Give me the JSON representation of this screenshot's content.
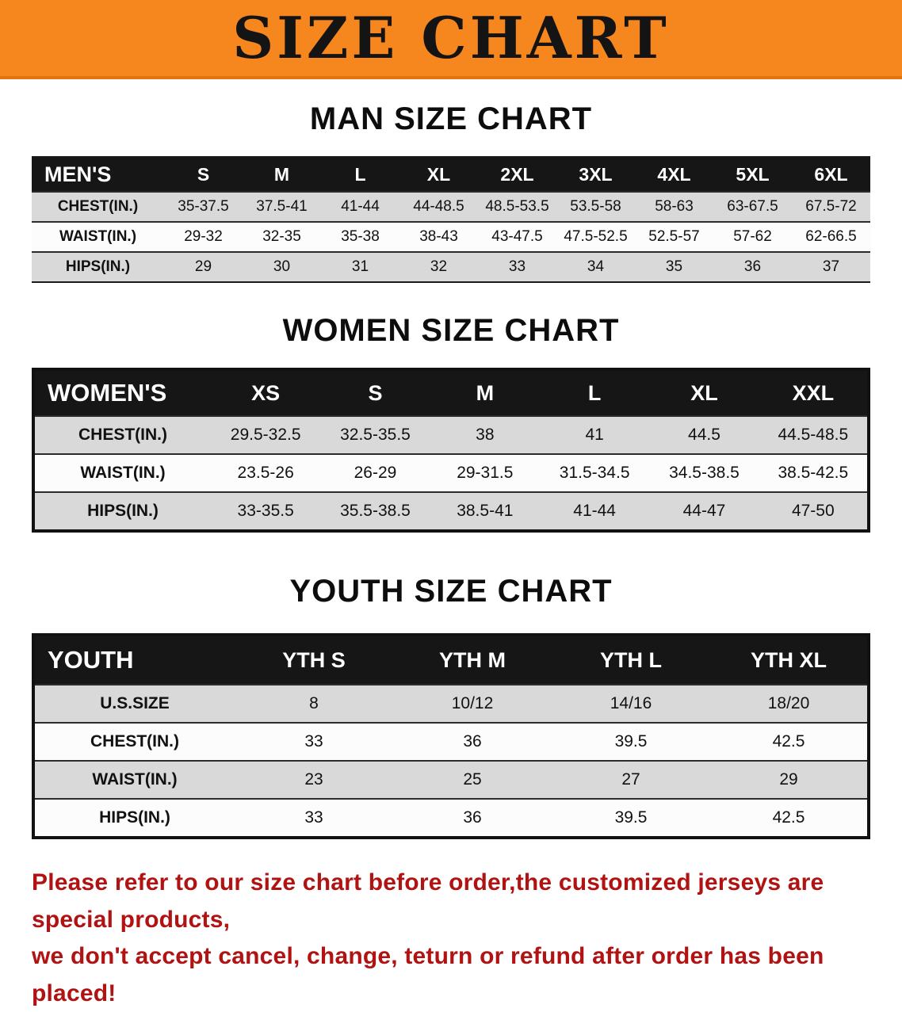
{
  "banner": {
    "title": "SIZE CHART"
  },
  "colors": {
    "banner_orange": "#f6861e",
    "table_header_black": "#161616",
    "row_stripe_gray": "#d9d9d9",
    "note_red": "#b11212"
  },
  "sections": [
    {
      "heading": "MAN SIZE CHART",
      "table": {
        "header_label": "MEN'S",
        "columns": [
          "S",
          "M",
          "L",
          "XL",
          "2XL",
          "3XL",
          "4XL",
          "5XL",
          "6XL"
        ],
        "rows": [
          {
            "label": "CHEST(IN.)",
            "values": [
              "35-37.5",
              "37.5-41",
              "41-44",
              "44-48.5",
              "48.5-53.5",
              "53.5-58",
              "58-63",
              "63-67.5",
              "67.5-72"
            ]
          },
          {
            "label": "WAIST(IN.)",
            "values": [
              "29-32",
              "32-35",
              "35-38",
              "38-43",
              "43-47.5",
              "47.5-52.5",
              "52.5-57",
              "57-62",
              "62-66.5"
            ]
          },
          {
            "label": "HIPS(IN.)",
            "values": [
              "29",
              "30",
              "31",
              "32",
              "33",
              "34",
              "35",
              "36",
              "37"
            ]
          }
        ]
      }
    },
    {
      "heading": "WOMEN SIZE CHART",
      "table": {
        "header_label": "WOMEN'S",
        "columns": [
          "XS",
          "S",
          "M",
          "L",
          "XL",
          "XXL"
        ],
        "rows": [
          {
            "label": "CHEST(IN.)",
            "values": [
              "29.5-32.5",
              "32.5-35.5",
              "38",
              "41",
              "44.5",
              "44.5-48.5"
            ]
          },
          {
            "label": "WAIST(IN.)",
            "values": [
              "23.5-26",
              "26-29",
              "29-31.5",
              "31.5-34.5",
              "34.5-38.5",
              "38.5-42.5"
            ]
          },
          {
            "label": "HIPS(IN.)",
            "values": [
              "33-35.5",
              "35.5-38.5",
              "38.5-41",
              "41-44",
              "44-47",
              "47-50"
            ]
          }
        ]
      }
    },
    {
      "heading": "YOUTH SIZE CHART",
      "table": {
        "header_label": "YOUTH",
        "columns": [
          "YTH S",
          "YTH M",
          "YTH L",
          "YTH XL"
        ],
        "rows": [
          {
            "label": "U.S.SIZE",
            "values": [
              "8",
              "10/12",
              "14/16",
              "18/20"
            ]
          },
          {
            "label": "CHEST(IN.)",
            "values": [
              "33",
              "36",
              "39.5",
              "42.5"
            ]
          },
          {
            "label": "WAIST(IN.)",
            "values": [
              "23",
              "25",
              "27",
              "29"
            ]
          },
          {
            "label": "HIPS(IN.)",
            "values": [
              "33",
              "36",
              "39.5",
              "42.5"
            ]
          }
        ]
      }
    }
  ],
  "footer_note": {
    "line1": "Please refer to our size chart before order,the customized jerseys are special products,",
    "line2": "we don't accept cancel, change, teturn or refund after order has been placed!"
  }
}
